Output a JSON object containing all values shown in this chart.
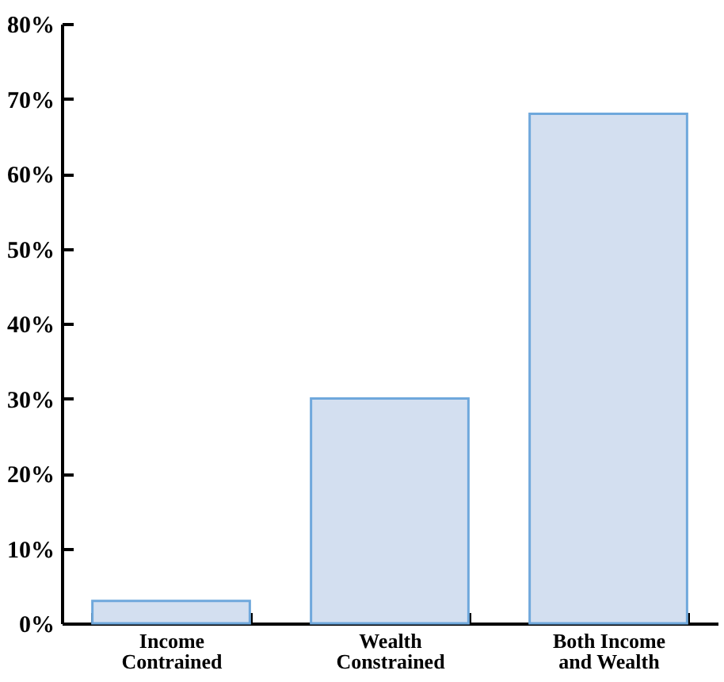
{
  "chart_data": {
    "type": "bar",
    "categories": [
      "Income\nContrained",
      "Wealth\nConstrained",
      "Both Income\nand Wealth"
    ],
    "values": [
      3,
      30,
      68
    ],
    "color": "#d3dff0",
    "ylim": [
      0,
      80
    ],
    "yticks": [
      {
        "value": 0,
        "label": "0%"
      },
      {
        "value": 10,
        "label": "10%"
      },
      {
        "value": 20,
        "label": "20%"
      },
      {
        "value": 30,
        "label": "30%"
      },
      {
        "value": 40,
        "label": "40%"
      },
      {
        "value": 50,
        "label": "50%"
      },
      {
        "value": 60,
        "label": "60%"
      },
      {
        "value": 70,
        "label": "70%"
      },
      {
        "value": 80,
        "label": "80%"
      }
    ],
    "grid": false
  }
}
